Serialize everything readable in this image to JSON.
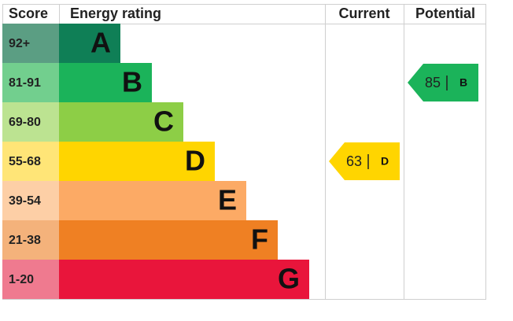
{
  "header": {
    "score": "Score",
    "energy_rating": "Energy rating",
    "current": "Current",
    "potential": "Potential"
  },
  "bands": [
    {
      "score": "92+",
      "letter": "A",
      "color": "#0f7f56",
      "score_color": "#5b9e83"
    },
    {
      "score": "81-91",
      "letter": "B",
      "color": "#1bb35a",
      "score_color": "#72cf8e"
    },
    {
      "score": "69-80",
      "letter": "C",
      "color": "#8dce46",
      "score_color": "#bce391"
    },
    {
      "score": "55-68",
      "letter": "D",
      "color": "#ffd500",
      "score_color": "#ffe577"
    },
    {
      "score": "39-54",
      "letter": "E",
      "color": "#fcaa65",
      "score_color": "#fdcfa6"
    },
    {
      "score": "21-38",
      "letter": "F",
      "color": "#ef8023",
      "score_color": "#f4b27b"
    },
    {
      "score": "1-20",
      "letter": "G",
      "color": "#e9153b",
      "score_color": "#ef7a8f"
    }
  ],
  "current": {
    "value": 63,
    "letter": "D"
  },
  "potential": {
    "value": 85,
    "letter": "B"
  }
}
